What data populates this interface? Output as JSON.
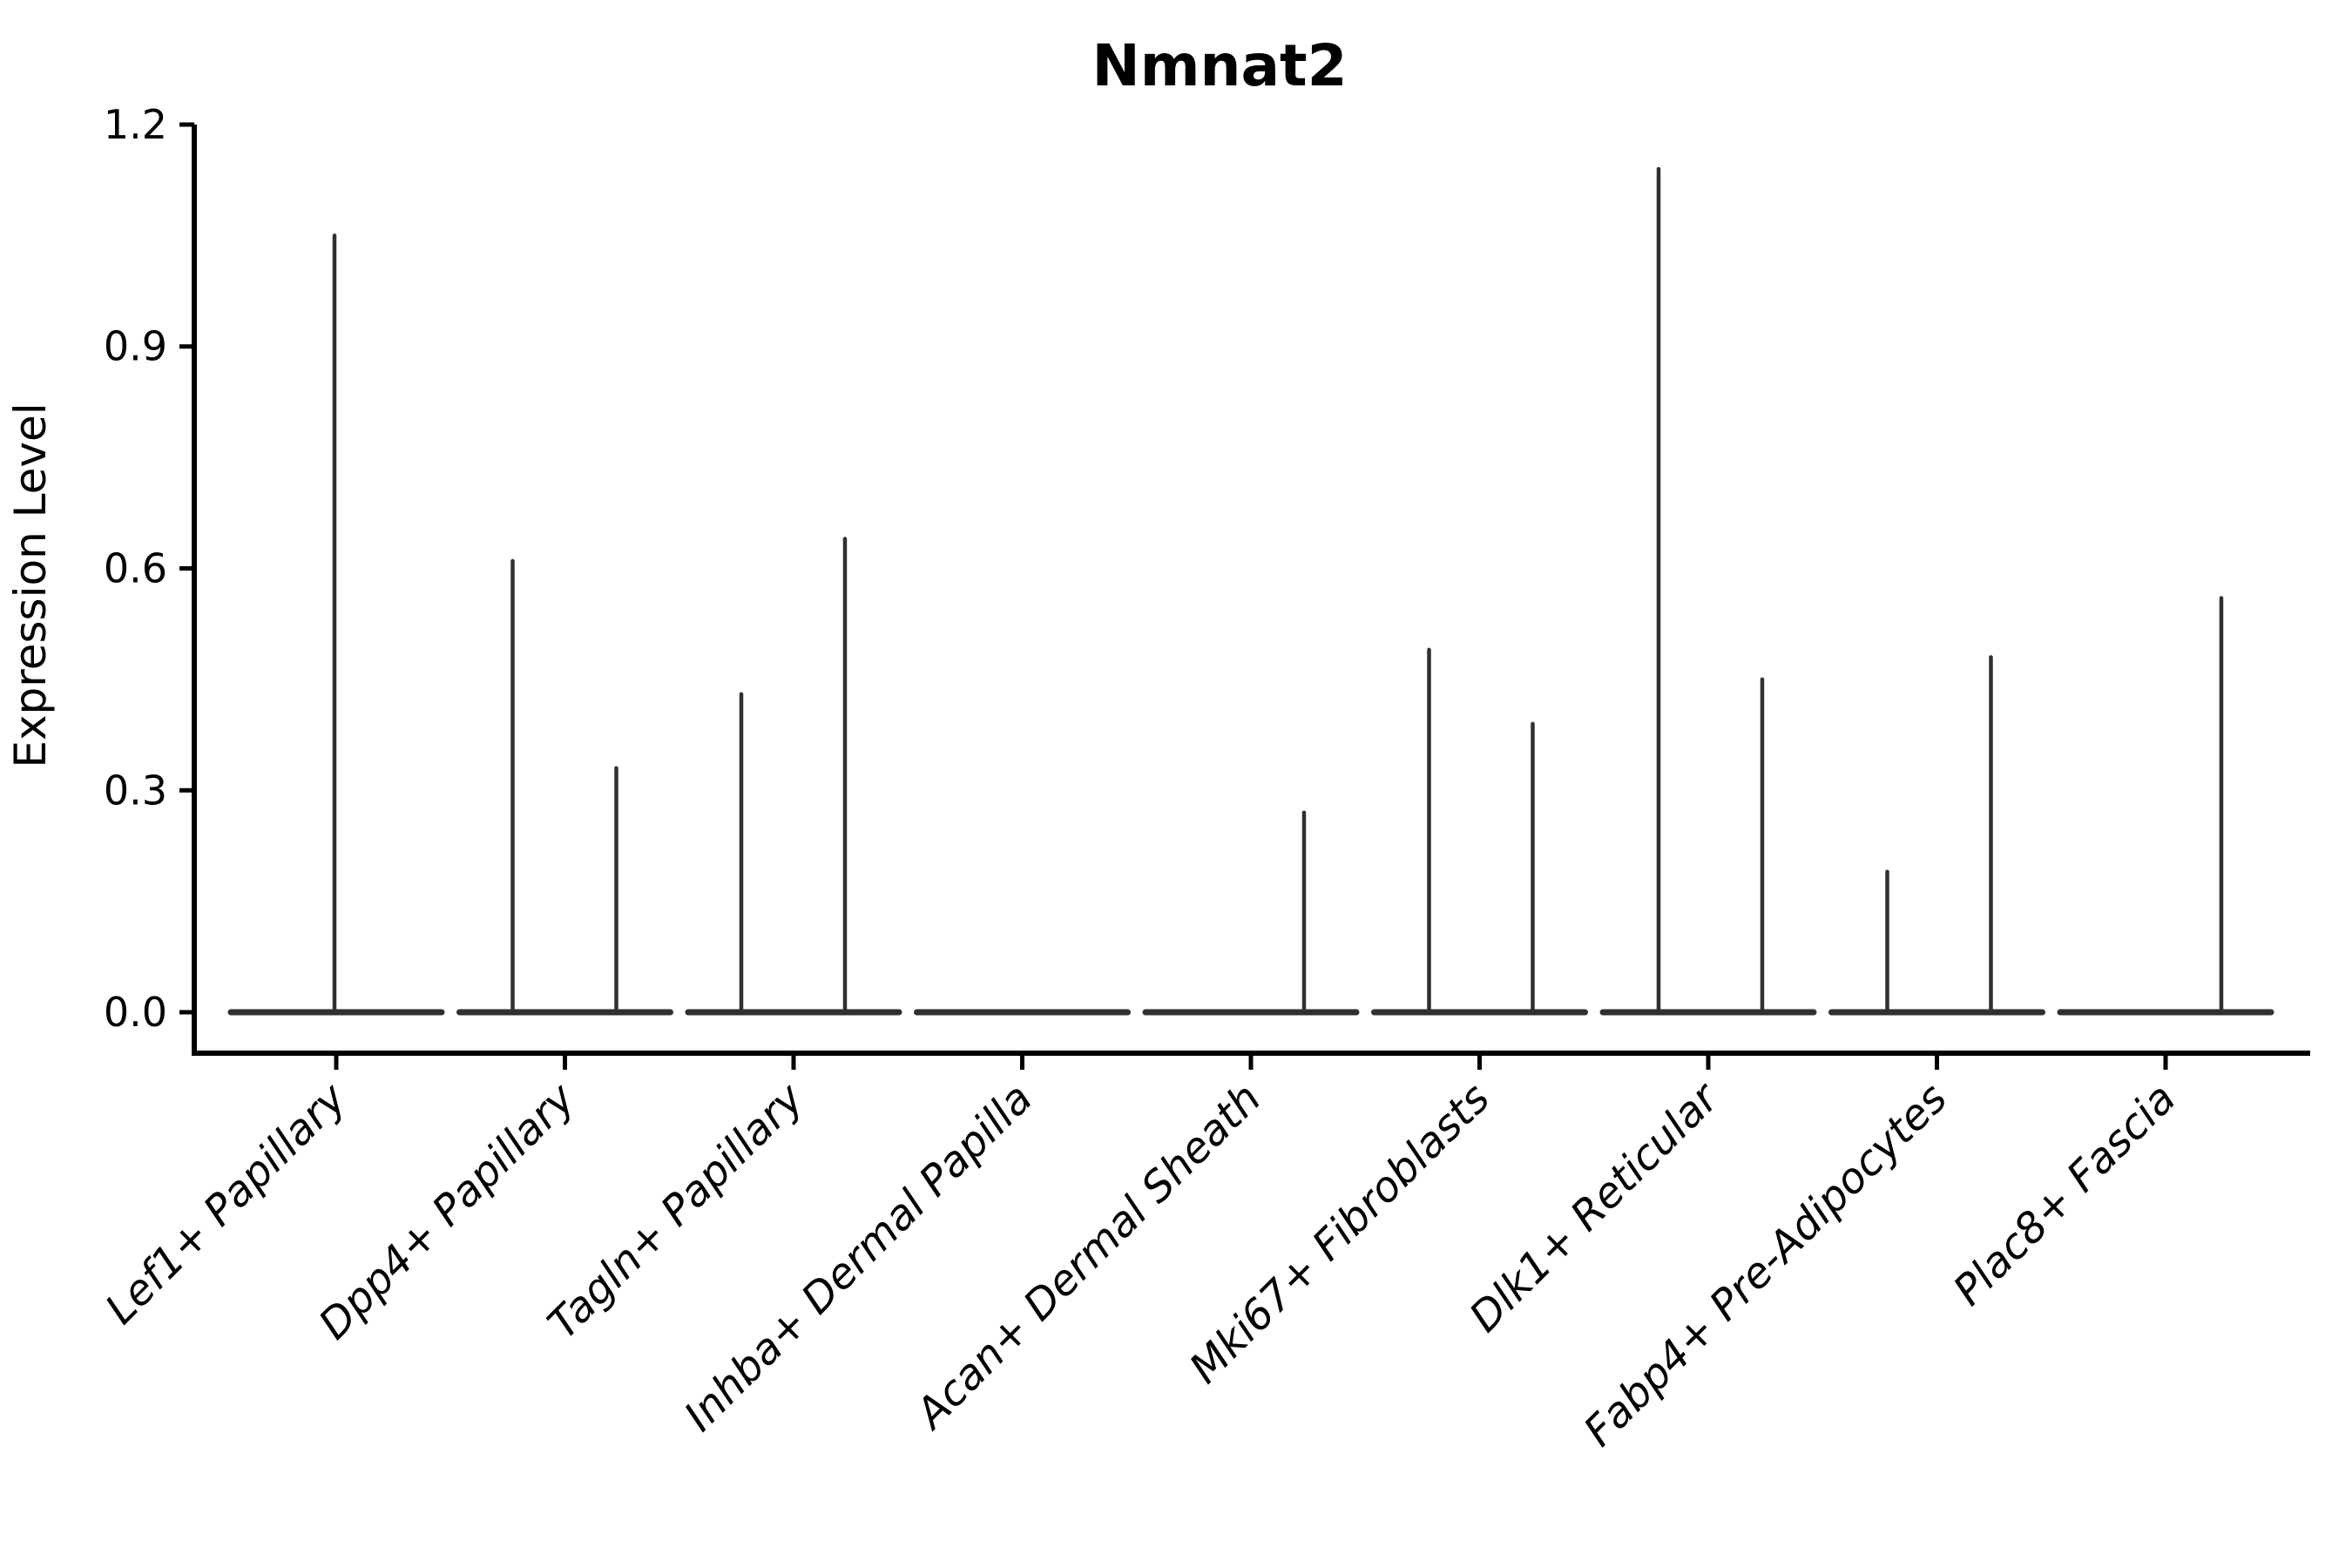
{
  "chart_data": {
    "type": "violin",
    "title": "Nmnat2",
    "ylabel": "Expression Level",
    "xlabel": "",
    "grid": false,
    "legend": "none",
    "ylim": [
      -0.055,
      1.2
    ],
    "yticks": [
      0.0,
      0.3,
      0.6,
      0.9,
      1.2
    ],
    "ytick_labels": [
      "0.0",
      "0.3",
      "0.6",
      "0.9",
      "1.2"
    ],
    "categories": [
      "Lef1+ Papillary",
      "Dpp4+ Papillary",
      "Tagln+ Papillary",
      "Inhba+ Dermal Papilla",
      "Acan+ Dermal Sheath",
      "Mki67+ Fibroblasts",
      "Dlk1+ Reticular",
      "Fabp4+ Pre-Adipocytes",
      "Plac8+ Fascia"
    ],
    "violins": [
      {
        "label": "Lef1+ Papillary",
        "baseline_value": 0.0,
        "spikes": [
          {
            "offset": -2,
            "value": 1.05
          }
        ]
      },
      {
        "label": "Dpp4+ Papillary",
        "baseline_value": 0.0,
        "spikes": [
          {
            "offset": -60,
            "value": 0.61
          },
          {
            "offset": 59,
            "value": 0.33
          }
        ]
      },
      {
        "label": "Tagln+ Papillary",
        "baseline_value": 0.0,
        "spikes": [
          {
            "offset": -60,
            "value": 0.43
          },
          {
            "offset": 59,
            "value": 0.64
          }
        ]
      },
      {
        "label": "Inhba+ Dermal Papilla",
        "baseline_value": 0.0,
        "spikes": []
      },
      {
        "label": "Acan+ Dermal Sheath",
        "baseline_value": 0.0,
        "spikes": [
          {
            "offset": 61,
            "value": 0.27
          }
        ]
      },
      {
        "label": "Mki67+ Fibroblasts",
        "baseline_value": 0.0,
        "spikes": [
          {
            "offset": -58,
            "value": 0.49
          },
          {
            "offset": 61,
            "value": 0.39
          }
        ]
      },
      {
        "label": "Dlk1+ Reticular",
        "baseline_value": 0.0,
        "spikes": [
          {
            "offset": -57,
            "value": 1.14
          },
          {
            "offset": 62,
            "value": 0.45
          }
        ]
      },
      {
        "label": "Fabp4+ Pre-Adipocytes",
        "baseline_value": 0.0,
        "spikes": [
          {
            "offset": -57,
            "value": 0.19
          },
          {
            "offset": 62,
            "value": 0.48
          }
        ]
      },
      {
        "label": "Plac8+ Fascia",
        "baseline_value": 0.0,
        "spikes": [
          {
            "offset": 64,
            "value": 0.56
          }
        ]
      }
    ],
    "colors": {
      "violin_stroke": "#303030",
      "axis": "#000000",
      "background": "#ffffff"
    }
  }
}
